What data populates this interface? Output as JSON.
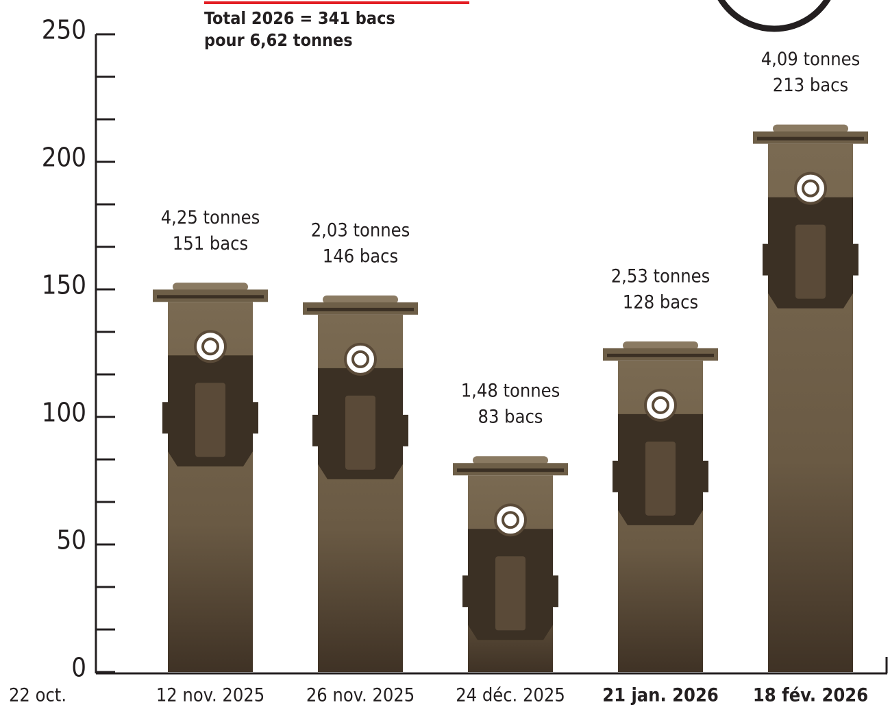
{
  "chart_data": {
    "type": "bar",
    "total_line_1": "Total  2026 = 341 bacs",
    "total_line_2": "pour 6,62 tonnes",
    "origin_label": "22 oct.",
    "categories": [
      "12 nov. 2025",
      "26 nov. 2025",
      "24 déc. 2025",
      "21 jan. 2026",
      "18 fév. 2026"
    ],
    "bold_categories": [
      false,
      false,
      false,
      true,
      true
    ],
    "values": [
      151,
      146,
      83,
      128,
      213
    ],
    "value_labels": [
      "151 bacs",
      "146 bacs",
      "83 bacs",
      "128 bacs",
      "213 bacs"
    ],
    "tonne_labels": [
      "4,25 tonnes",
      "2,03 tonnes",
      "1,48 tonnes",
      "2,53 tonnes",
      "4,09 tonnes"
    ],
    "color": "#6e5f48",
    "ylim": [
      0,
      250
    ],
    "yticks": [
      0,
      50,
      100,
      150,
      200,
      250
    ]
  }
}
